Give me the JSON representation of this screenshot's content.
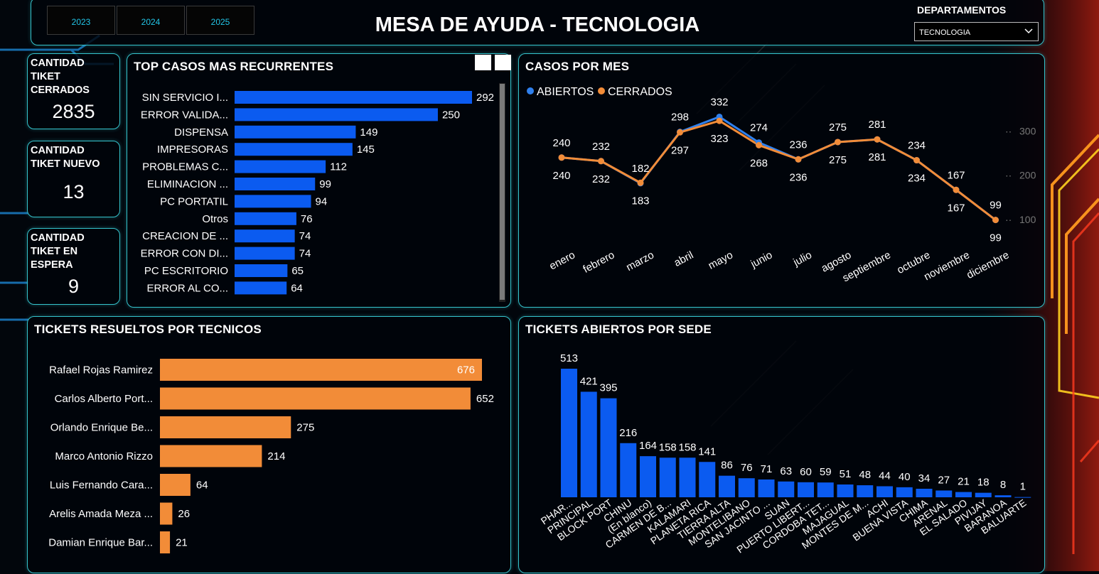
{
  "header": {
    "title": "MESA DE AYUDA - TECNOLOGIA",
    "years": [
      "2023",
      "2024",
      "2025"
    ],
    "department_label": "DEPARTAMENTOS",
    "department_value": "TECNOLOGIA"
  },
  "kpis": [
    {
      "label_lines": [
        "CANTIDAD",
        "TIKET",
        "CERRADOS"
      ],
      "value": "2835"
    },
    {
      "label_lines": [
        "CANTIDAD",
        "TIKET NUEVO"
      ],
      "value": "13"
    },
    {
      "label_lines": [
        "CANTIDAD",
        "TIKET EN",
        "ESPERA"
      ],
      "value": "9"
    }
  ],
  "top_cases": {
    "title": "TOP CASOS MAS RECURRENTES"
  },
  "casos_mes": {
    "title": "CASOS POR MES"
  },
  "tecnicos": {
    "title": "TICKETS RESUELTOS POR TECNICOS"
  },
  "sede": {
    "title": "TICKETS ABIERTOS POR SEDE"
  },
  "colors": {
    "accent": "#35c3cc",
    "blue_bar": "#0b5bf0",
    "orange_bar": "#f28c38",
    "line_open": "#2f80ed",
    "line_closed": "#f28c38",
    "year_text": "#22c6e8"
  },
  "chart_data": [
    {
      "type": "bar",
      "orientation": "horizontal",
      "title": "TOP CASOS MAS RECURRENTES",
      "categories": [
        "SIN SERVICIO I...",
        "ERROR VALIDA...",
        "DISPENSA",
        "IMPRESORAS",
        "PROBLEMAS C...",
        "ELIMINACION ...",
        "PC PORTATIL",
        "Otros",
        "CREACION DE ...",
        "ERROR CON DI...",
        "PC ESCRITORIO",
        "ERROR AL CO..."
      ],
      "values": [
        292,
        250,
        149,
        145,
        112,
        99,
        94,
        76,
        74,
        74,
        65,
        64
      ],
      "color": "#0b5bf0"
    },
    {
      "type": "line",
      "title": "CASOS POR MES",
      "x": [
        "enero",
        "febrero",
        "marzo",
        "abril",
        "mayo",
        "junio",
        "julio",
        "agosto",
        "septiembre",
        "octubre",
        "noviembre",
        "diciembre"
      ],
      "series": [
        {
          "name": "ABIERTOS",
          "values": [
            240,
            232,
            182,
            298,
            332,
            274,
            236,
            275,
            281,
            234,
            167,
            99
          ],
          "color": "#2f80ed"
        },
        {
          "name": "CERRADOS",
          "values": [
            240,
            232,
            183,
            297,
            323,
            268,
            236,
            275,
            281,
            234,
            167,
            99
          ],
          "color": "#f28c38"
        }
      ],
      "yticks": [
        "300",
        "200",
        "100"
      ],
      "legend": "top-left"
    },
    {
      "type": "bar",
      "orientation": "horizontal",
      "title": "TICKETS RESUELTOS POR TECNICOS",
      "categories": [
        "Rafael Rojas Ramirez",
        "Carlos Alberto Port...",
        "Orlando Enrique Be...",
        "Marco Antonio Rizzo",
        "Luis Fernando Cara...",
        "Arelis Amada Meza ...",
        "Damian Enrique Bar..."
      ],
      "values": [
        676,
        652,
        275,
        214,
        64,
        26,
        21
      ],
      "color": "#f28c38"
    },
    {
      "type": "bar",
      "orientation": "vertical",
      "title": "TICKETS ABIERTOS POR SEDE",
      "categories": [
        "PHAR...",
        "PRINCIPAL",
        "BLOCK PORT",
        "CHINU",
        "(En blanco)",
        "CARMEN DE B...",
        "KALAMARI",
        "PLANETA RICA",
        "TIERRA ALTA",
        "MONTELIBANO",
        "SAN JACINTO ...",
        "SUAN",
        "PUERTO LIBERT...",
        "CORDOBA TET...",
        "MAJAGUAL",
        "MONTES DE M...",
        "ACHI",
        "BUENA VISTA",
        "CHIMA",
        "ARENAL",
        "EL SALADO",
        "PIVIJAY",
        "BARANOA",
        "BALUARTE"
      ],
      "values": [
        513,
        421,
        395,
        216,
        164,
        158,
        158,
        141,
        86,
        76,
        71,
        63,
        60,
        59,
        51,
        48,
        44,
        40,
        34,
        27,
        21,
        18,
        8,
        1
      ],
      "color": "#0b5bf0"
    }
  ]
}
